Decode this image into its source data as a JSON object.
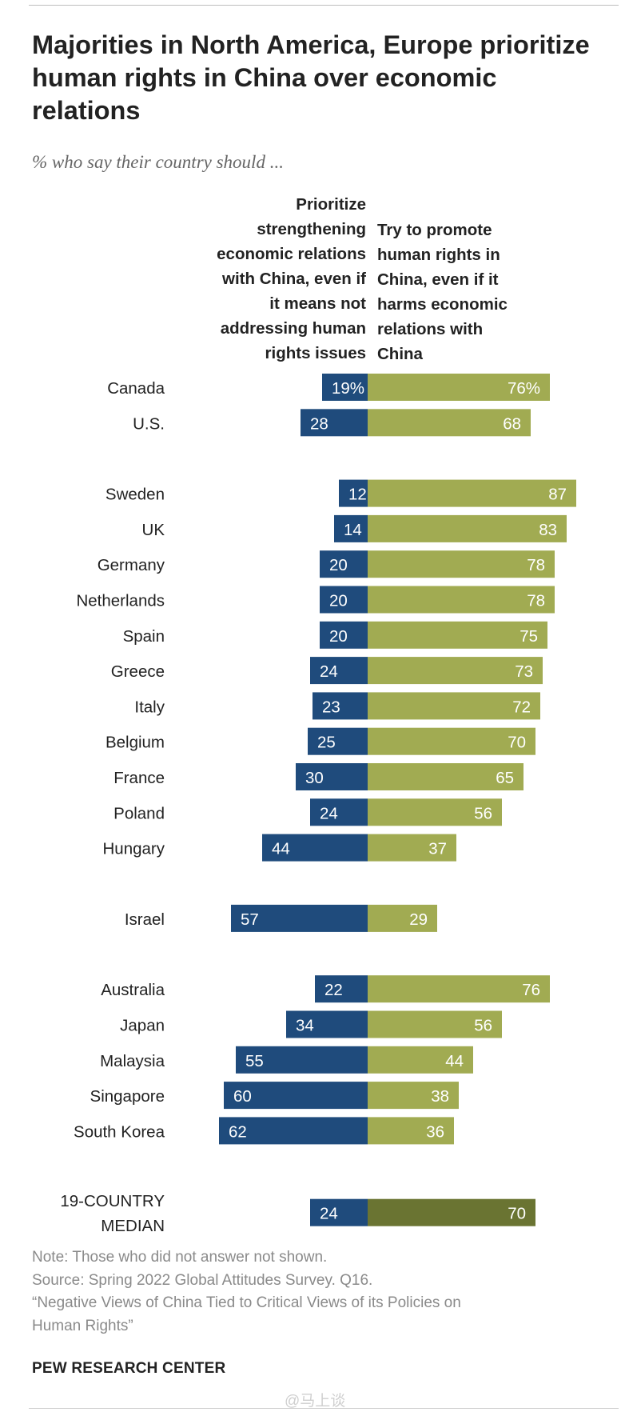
{
  "title": "Majorities in North America, Europe prioritize human rights in China over economic relations",
  "subtitle": "% who say their country should ...",
  "column_headers": {
    "left": [
      "Prioritize",
      "strengthening",
      "economic relations",
      "with China, even if",
      "it means not",
      "addressing human",
      "rights issues"
    ],
    "right": [
      "Try to promote",
      "human rights in",
      "China, even if it",
      "harms economic",
      "relations with",
      "China"
    ]
  },
  "colors": {
    "economic": "#1f4b7c",
    "rights": "#a1ab52",
    "median_rights": "#6a7432",
    "label_on_bar": "#ffffff"
  },
  "chart_data": {
    "type": "bar",
    "orientation": "horizontal-diverging",
    "series": [
      {
        "name": "Prioritize strengthening economic relations with China, even if it means not addressing human rights issues",
        "values": [
          19,
          28,
          12,
          14,
          20,
          20,
          20,
          24,
          23,
          25,
          30,
          24,
          44,
          57,
          22,
          34,
          55,
          60,
          62,
          24
        ]
      },
      {
        "name": "Try to promote human rights in China, even if it harms economic relations with China",
        "values": [
          76,
          68,
          87,
          83,
          78,
          78,
          75,
          73,
          72,
          70,
          65,
          56,
          37,
          29,
          76,
          56,
          44,
          38,
          36,
          70
        ]
      }
    ],
    "categories": [
      "Canada",
      "U.S.",
      "Sweden",
      "UK",
      "Germany",
      "Netherlands",
      "Spain",
      "Greece",
      "Italy",
      "Belgium",
      "France",
      "Poland",
      "Hungary",
      "Israel",
      "Australia",
      "Japan",
      "Malaysia",
      "Singapore",
      "South Korea",
      "19-COUNTRY MEDIAN"
    ],
    "rows": [
      {
        "country": "Canada",
        "left": 19,
        "right": 76,
        "left_label": "19%",
        "right_label": "76%",
        "group": 0
      },
      {
        "country": "U.S.",
        "left": 28,
        "right": 68,
        "left_label": "28",
        "right_label": "68",
        "group": 0
      },
      {
        "country": "Sweden",
        "left": 12,
        "right": 87,
        "left_label": "12",
        "right_label": "87",
        "group": 1
      },
      {
        "country": "UK",
        "left": 14,
        "right": 83,
        "left_label": "14",
        "right_label": "83",
        "group": 1
      },
      {
        "country": "Germany",
        "left": 20,
        "right": 78,
        "left_label": "20",
        "right_label": "78",
        "group": 1
      },
      {
        "country": "Netherlands",
        "left": 20,
        "right": 78,
        "left_label": "20",
        "right_label": "78",
        "group": 1
      },
      {
        "country": "Spain",
        "left": 20,
        "right": 75,
        "left_label": "20",
        "right_label": "75",
        "group": 1
      },
      {
        "country": "Greece",
        "left": 24,
        "right": 73,
        "left_label": "24",
        "right_label": "73",
        "group": 1
      },
      {
        "country": "Italy",
        "left": 23,
        "right": 72,
        "left_label": "23",
        "right_label": "72",
        "group": 1
      },
      {
        "country": "Belgium",
        "left": 25,
        "right": 70,
        "left_label": "25",
        "right_label": "70",
        "group": 1
      },
      {
        "country": "France",
        "left": 30,
        "right": 65,
        "left_label": "30",
        "right_label": "65",
        "group": 1
      },
      {
        "country": "Poland",
        "left": 24,
        "right": 56,
        "left_label": "24",
        "right_label": "56",
        "group": 1
      },
      {
        "country": "Hungary",
        "left": 44,
        "right": 37,
        "left_label": "44",
        "right_label": "37",
        "group": 1
      },
      {
        "country": "Israel",
        "left": 57,
        "right": 29,
        "left_label": "57",
        "right_label": "29",
        "group": 2
      },
      {
        "country": "Australia",
        "left": 22,
        "right": 76,
        "left_label": "22",
        "right_label": "76",
        "group": 3
      },
      {
        "country": "Japan",
        "left": 34,
        "right": 56,
        "left_label": "34",
        "right_label": "56",
        "group": 3
      },
      {
        "country": "Malaysia",
        "left": 55,
        "right": 44,
        "left_label": "55",
        "right_label": "44",
        "group": 3
      },
      {
        "country": "Singapore",
        "left": 60,
        "right": 38,
        "left_label": "60",
        "right_label": "38",
        "group": 3
      },
      {
        "country": "South Korea",
        "left": 62,
        "right": 36,
        "left_label": "62",
        "right_label": "36",
        "group": 3
      },
      {
        "country": "19-COUNTRY MEDIAN",
        "country_lines": [
          "19-COUNTRY",
          "MEDIAN"
        ],
        "left": 24,
        "right": 70,
        "left_label": "24",
        "right_label": "70",
        "group": 4,
        "is_median": true
      }
    ],
    "xlim": [
      0,
      100
    ]
  },
  "notes": {
    "note": "Note: Those who did not answer not shown.",
    "source": "Source: Spring 2022 Global Attitudes Survey. Q16.",
    "report_line1": "“Negative Views of China Tied to Critical Views of its Policies on",
    "report_line2": "Human Rights”"
  },
  "organization": "PEW RESEARCH CENTER",
  "watermark": "@马上谈"
}
